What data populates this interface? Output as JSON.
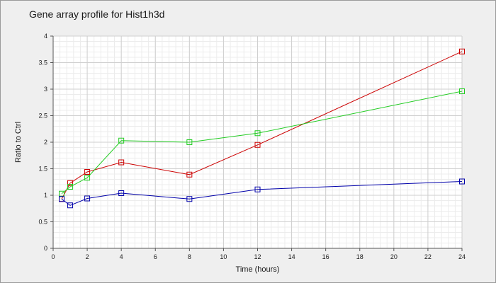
{
  "chart_data": {
    "type": "line",
    "title": "Gene array profile for Hist1h3d",
    "xlabel": "Time (hours)",
    "ylabel": "Ratio to Ctrl",
    "xlim": [
      0,
      24
    ],
    "ylim": [
      0,
      4
    ],
    "x_ticks": [
      0,
      2,
      4,
      6,
      8,
      10,
      12,
      14,
      16,
      18,
      20,
      22,
      24
    ],
    "x_tick_labels": [
      "0",
      "2",
      "4",
      "6",
      "8",
      "10",
      "12",
      "14",
      "16",
      "18",
      "20",
      "22",
      "24"
    ],
    "y_ticks": [
      0,
      0.5,
      1,
      1.5,
      2,
      2.5,
      3,
      3.5,
      4
    ],
    "y_tick_labels": [
      "0",
      "0.5",
      "1",
      "1.5",
      "2",
      "2.5",
      "3",
      "3.5",
      "4"
    ],
    "grid": true,
    "legend": "none",
    "x": [
      0.5,
      1,
      2,
      4,
      8,
      12,
      24
    ],
    "series": [
      {
        "color": "#cc0000",
        "values": [
          0.93,
          1.23,
          1.44,
          1.62,
          1.39,
          1.95,
          3.71
        ]
      },
      {
        "color": "#22cc22",
        "values": [
          1.03,
          1.16,
          1.33,
          2.03,
          2.0,
          2.17,
          2.96
        ]
      },
      {
        "color": "#0000aa",
        "values": [
          0.93,
          0.81,
          0.94,
          1.04,
          0.93,
          1.11,
          1.26
        ]
      }
    ]
  }
}
